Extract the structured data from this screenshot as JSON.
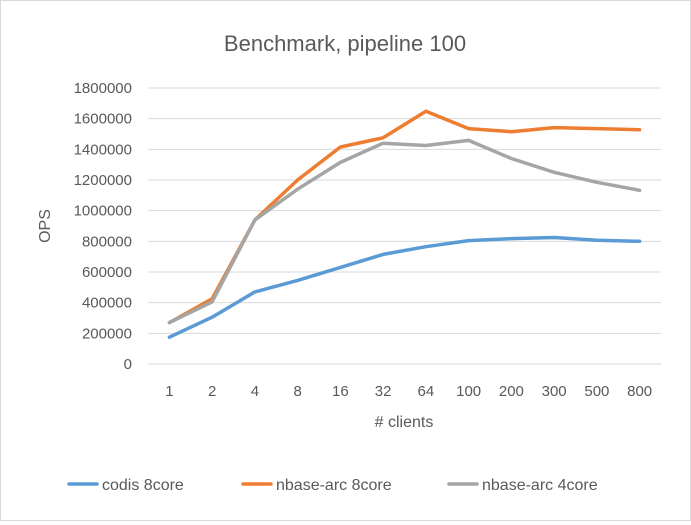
{
  "chart_data": {
    "type": "line",
    "title": "Benchmark, pipeline 100",
    "xlabel": "# clients",
    "ylabel": "OPS",
    "categories": [
      "1",
      "2",
      "4",
      "8",
      "16",
      "32",
      "64",
      "100",
      "200",
      "300",
      "500",
      "800"
    ],
    "ylim": [
      0,
      1800000
    ],
    "yticks": [
      0,
      200000,
      400000,
      600000,
      800000,
      1000000,
      1200000,
      1400000,
      1600000,
      1800000
    ],
    "ytick_labels": [
      "0",
      "200000",
      "400000",
      "600000",
      "800000",
      "1000000",
      "1200000",
      "1400000",
      "1600000",
      "1800000"
    ],
    "grid": true,
    "legend_position": "bottom",
    "series": [
      {
        "name": "codis 8core",
        "color": "#5b9bd5",
        "values": [
          175000,
          305000,
          470000,
          545000,
          630000,
          715000,
          765000,
          805000,
          818000,
          825000,
          807000,
          800000
        ]
      },
      {
        "name": "nbase-arc 8core",
        "color": "#ed7d31",
        "values": [
          270000,
          425000,
          940000,
          1200000,
          1415000,
          1475000,
          1648000,
          1535000,
          1515000,
          1542000,
          1535000,
          1528000
        ]
      },
      {
        "name": "nbase-arc 4core",
        "color": "#a5a5a5",
        "values": [
          270000,
          405000,
          940000,
          1140000,
          1315000,
          1440000,
          1425000,
          1458000,
          1340000,
          1250000,
          1185000,
          1133000
        ]
      }
    ]
  }
}
